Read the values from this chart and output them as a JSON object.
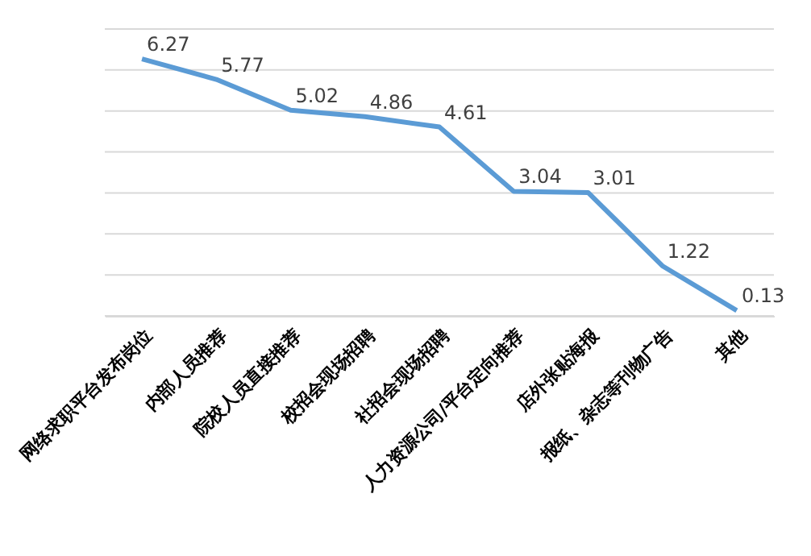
{
  "chart_data": {
    "type": "line",
    "categories": [
      "网络求职平台发布岗位",
      "内部人员推荐",
      "院校人员直接推荐",
      "校招会现场招聘",
      "社招会现场招聘",
      "人力资源公司/平台定向推荐",
      "店外张贴海报",
      "报纸、杂志等刊物广告",
      "其他"
    ],
    "series": [
      {
        "color": "#5b9bd5",
        "values": [
          6.27,
          5.77,
          5.02,
          4.86,
          4.61,
          3.04,
          3.01,
          1.22,
          0.13
        ]
      }
    ],
    "ylim": [
      0,
      7
    ],
    "yticks": [
      {
        "value": 0,
        "label": null
      },
      {
        "value": 1,
        "label": null
      },
      {
        "value": 2,
        "label": null
      },
      {
        "value": 3,
        "label": null
      },
      {
        "value": 4,
        "label": null
      },
      {
        "value": 5,
        "label": null
      },
      {
        "value": 6,
        "label": null
      },
      {
        "value": 7,
        "label": null
      }
    ],
    "grid": "y",
    "tick_labels": "x",
    "data_labels": true,
    "marker": "none",
    "line_style": "solid"
  }
}
